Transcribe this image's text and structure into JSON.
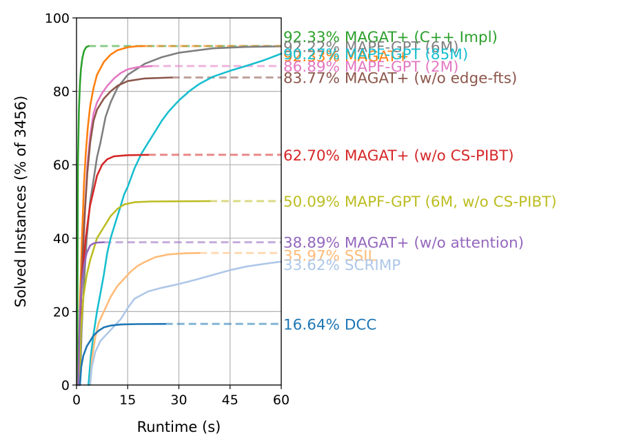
{
  "chart_data": {
    "type": "line",
    "title": "",
    "xlabel": "Runtime (s)",
    "ylabel": "Solved Instances (% of 3456)",
    "xlim": [
      0,
      60
    ],
    "ylim": [
      0,
      100
    ],
    "x_ticks": [
      0,
      15,
      30,
      45,
      60
    ],
    "y_ticks": [
      0,
      20,
      40,
      60,
      80,
      100
    ],
    "grid": true,
    "legend": "direct labels at right end of each series",
    "series": [
      {
        "name": "MAGAT+ (C++ Impl)",
        "final_label": "92.33% MAGAT+ (C++ Impl)",
        "final_value": 92.33,
        "color": "#2ca02c",
        "solid": [
          [
            0.2,
            0
          ],
          [
            0.4,
            60
          ],
          [
            0.7,
            75
          ],
          [
            1.0,
            82
          ],
          [
            1.3,
            86
          ],
          [
            1.7,
            89
          ],
          [
            2.2,
            91
          ],
          [
            2.8,
            92
          ],
          [
            3.5,
            92.33
          ]
        ],
        "solid_end": 3.5
      },
      {
        "name": "MAGAT+",
        "final_label": "92.33% MAGAT+",
        "final_value": 92.33,
        "color": "#ff7f0e",
        "solid": [
          [
            0.5,
            0
          ],
          [
            1.0,
            22
          ],
          [
            1.6,
            40
          ],
          [
            2.2,
            55
          ],
          [
            2.7,
            63
          ],
          [
            3.3,
            70
          ],
          [
            4.0,
            76
          ],
          [
            5.0,
            81
          ],
          [
            6.0,
            84.5
          ],
          [
            8.0,
            88
          ],
          [
            10.0,
            90
          ],
          [
            12.0,
            91.2
          ],
          [
            15.0,
            92
          ],
          [
            18.0,
            92.3
          ],
          [
            20.0,
            92.33
          ]
        ],
        "solid_end": 20
      },
      {
        "name": "MAPF-GPT (6M)",
        "final_label": "92.22% MAPF-GPT (6M)",
        "final_value": 92.22,
        "color": "#7f7f7f",
        "solid": [
          [
            1.0,
            0
          ],
          [
            1.5,
            15
          ],
          [
            2.2,
            28
          ],
          [
            3.0,
            40
          ],
          [
            4.0,
            50
          ],
          [
            5.0,
            56
          ],
          [
            6.0,
            62
          ],
          [
            7.0,
            66
          ],
          [
            8.5,
            73
          ],
          [
            10.0,
            77
          ],
          [
            12.0,
            81
          ],
          [
            15.0,
            84.5
          ],
          [
            20.0,
            87.5
          ],
          [
            25.0,
            89.3
          ],
          [
            30.0,
            90.5
          ],
          [
            40.0,
            91.7
          ],
          [
            50.0,
            92.1
          ],
          [
            58.0,
            92.22
          ]
        ],
        "solid_end": 58
      },
      {
        "name": "MAPF-GPT (85M)",
        "final_label": "90.27% MAPF-GPT (85M)",
        "final_value": 90.27,
        "color": "#17becf",
        "solid": [
          [
            3.5,
            0
          ],
          [
            4.2,
            8
          ],
          [
            5.0,
            14
          ],
          [
            6.0,
            20
          ],
          [
            7.0,
            25
          ],
          [
            8.0,
            30
          ],
          [
            9.0,
            36
          ],
          [
            10.0,
            40
          ],
          [
            11.0,
            43
          ],
          [
            12.0,
            46
          ],
          [
            13.0,
            49
          ],
          [
            14.0,
            52
          ],
          [
            15.0,
            54
          ],
          [
            17.0,
            59
          ],
          [
            19.0,
            63
          ],
          [
            21.0,
            66
          ],
          [
            23.0,
            69
          ],
          [
            25.0,
            72
          ],
          [
            27.0,
            74.5
          ],
          [
            30.0,
            77.5
          ],
          [
            33.0,
            80
          ],
          [
            36.0,
            82
          ],
          [
            40.0,
            84
          ],
          [
            45.0,
            85.6
          ],
          [
            50.0,
            87
          ],
          [
            55.0,
            88.5
          ],
          [
            60.0,
            90.27
          ]
        ],
        "solid_end": 60
      },
      {
        "name": "MAPF-GPT (2M)",
        "final_label": "86.89% MAPF-GPT (2M)",
        "final_value": 86.89,
        "color": "#e377c2",
        "solid": [
          [
            0.8,
            0
          ],
          [
            1.2,
            20
          ],
          [
            1.8,
            35
          ],
          [
            2.5,
            48
          ],
          [
            3.2,
            60
          ],
          [
            4.0,
            68
          ],
          [
            5.0,
            74
          ],
          [
            6.0,
            77
          ],
          [
            7.5,
            79.5
          ],
          [
            9.0,
            81.5
          ],
          [
            11.0,
            83.5
          ],
          [
            13.0,
            85
          ],
          [
            15.0,
            86
          ],
          [
            18.0,
            86.6
          ],
          [
            22.0,
            86.89
          ]
        ],
        "solid_end": 22
      },
      {
        "name": "MAGAT+ (w/o edge-fts)",
        "final_label": "83.77% MAGAT+ (w/o edge-fts)",
        "final_value": 83.77,
        "color": "#8c564b",
        "solid": [
          [
            0.8,
            0
          ],
          [
            1.2,
            20
          ],
          [
            1.8,
            35
          ],
          [
            2.5,
            48
          ],
          [
            3.2,
            58
          ],
          [
            4.0,
            66
          ],
          [
            5.0,
            72
          ],
          [
            6.0,
            75
          ],
          [
            8.0,
            78
          ],
          [
            10.0,
            80
          ],
          [
            12.0,
            81.5
          ],
          [
            15.0,
            82.8
          ],
          [
            20.0,
            83.5
          ],
          [
            28.0,
            83.77
          ]
        ],
        "solid_end": 28
      },
      {
        "name": "MAGAT+ (w/o CS-PIBT)",
        "final_label": "62.70% MAGAT+ (w/o CS-PIBT)",
        "final_value": 62.7,
        "color": "#d62728",
        "solid": [
          [
            0.5,
            0
          ],
          [
            0.9,
            15
          ],
          [
            1.4,
            25
          ],
          [
            2.0,
            33
          ],
          [
            2.7,
            40
          ],
          [
            3.4,
            45
          ],
          [
            4.0,
            49
          ],
          [
            5.0,
            53
          ],
          [
            6.0,
            57
          ],
          [
            7.5,
            60
          ],
          [
            9.0,
            61.5
          ],
          [
            11.0,
            62.3
          ],
          [
            15.0,
            62.6
          ],
          [
            21.0,
            62.7
          ]
        ],
        "solid_end": 21
      },
      {
        "name": "MAPF-GPT (6M, w/o CS-PIBT)",
        "final_label": "50.09% MAPF-GPT (6M, w/o CS-PIBT)",
        "final_value": 50.09,
        "color": "#bcbd22",
        "solid": [
          [
            0.8,
            0
          ],
          [
            1.3,
            15
          ],
          [
            2.0,
            24
          ],
          [
            3.0,
            30
          ],
          [
            4.0,
            34
          ],
          [
            5.0,
            37
          ],
          [
            6.0,
            40
          ],
          [
            8.0,
            43
          ],
          [
            10.0,
            46
          ],
          [
            12.0,
            48
          ],
          [
            14.0,
            49.2
          ],
          [
            17.0,
            49.8
          ],
          [
            22.0,
            50
          ],
          [
            39.0,
            50.09
          ]
        ],
        "solid_end": 39
      },
      {
        "name": "MAGAT+ (w/o attention)",
        "final_label": "38.89% MAGAT+ (w/o attention)",
        "final_value": 38.89,
        "color": "#9467bd",
        "solid": [
          [
            0.5,
            0
          ],
          [
            1.0,
            20
          ],
          [
            1.6,
            28
          ],
          [
            2.3,
            33
          ],
          [
            3.0,
            36
          ],
          [
            4.0,
            38
          ],
          [
            5.0,
            38.6
          ],
          [
            6.0,
            38.8
          ],
          [
            8.0,
            38.89
          ]
        ],
        "solid_end": 8
      },
      {
        "name": "SSIL",
        "final_label": "35.97% SSIL",
        "final_value": 35.97,
        "color": "#ffbb78",
        "solid": [
          [
            4.0,
            0
          ],
          [
            4.5,
            7
          ],
          [
            5.5,
            13
          ],
          [
            6.5,
            17
          ],
          [
            8.0,
            20
          ],
          [
            10.0,
            24
          ],
          [
            12.0,
            27
          ],
          [
            14.0,
            29
          ],
          [
            16.0,
            31
          ],
          [
            18.0,
            32.5
          ],
          [
            20.0,
            33.5
          ],
          [
            23.0,
            34.8
          ],
          [
            27.0,
            35.6
          ],
          [
            32.0,
            35.9
          ],
          [
            36.0,
            35.97
          ]
        ],
        "solid_end": 36
      },
      {
        "name": "SCRIMP",
        "final_label": "33.62% SCRIMP",
        "final_value": 33.62,
        "color": "#aec7e8",
        "solid": [
          [
            4.0,
            0
          ],
          [
            4.5,
            5
          ],
          [
            5.5,
            9
          ],
          [
            7.0,
            12
          ],
          [
            9.0,
            14
          ],
          [
            11.0,
            16
          ],
          [
            13.0,
            18
          ],
          [
            15.0,
            21
          ],
          [
            17.0,
            23.5
          ],
          [
            19.0,
            24.5
          ],
          [
            21.0,
            25.5
          ],
          [
            25.0,
            26.5
          ],
          [
            30.0,
            27.5
          ],
          [
            35.0,
            28.7
          ],
          [
            40.0,
            30
          ],
          [
            45.0,
            31.3
          ],
          [
            50.0,
            32.3
          ],
          [
            55.0,
            33
          ],
          [
            60.0,
            33.62
          ]
        ],
        "solid_end": 60
      },
      {
        "name": "DCC",
        "final_label": "16.64% DCC",
        "final_value": 16.64,
        "color": "#1f77b4",
        "solid": [
          [
            1.0,
            0
          ],
          [
            1.4,
            5
          ],
          [
            2.0,
            8
          ],
          [
            3.0,
            10.5
          ],
          [
            4.0,
            12
          ],
          [
            5.0,
            13.5
          ],
          [
            6.5,
            14.8
          ],
          [
            8.0,
            15.7
          ],
          [
            10.0,
            16.2
          ],
          [
            13.0,
            16.5
          ],
          [
            18.0,
            16.6
          ],
          [
            26.0,
            16.64
          ]
        ],
        "solid_end": 26
      }
    ]
  }
}
